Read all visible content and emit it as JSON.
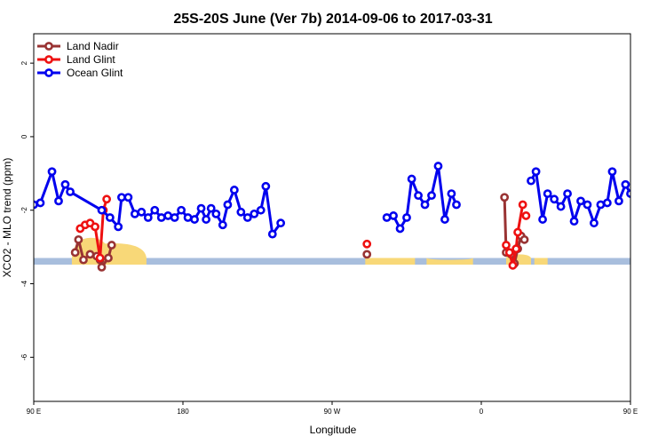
{
  "chart_data": {
    "type": "line",
    "title": "25S-20S June (Ver 7b)   2014-09-06 to 2017-03-31",
    "xlabel": "Longitude",
    "ylabel": "XCO2 - MLO trend (ppm)",
    "xlim": [
      90,
      450
    ],
    "ylim": [
      -7.2,
      2.8
    ],
    "x_ticks": [
      {
        "value": 90,
        "label": "90 E"
      },
      {
        "value": 180,
        "label": "180"
      },
      {
        "value": 270,
        "label": "90 W"
      },
      {
        "value": 360,
        "label": "0"
      },
      {
        "value": 450,
        "label": "90 E"
      },
      {
        "value": 540,
        "label": "180"
      }
    ],
    "y_ticks": [
      {
        "value": 2,
        "label": "2"
      },
      {
        "value": 0,
        "label": "0"
      },
      {
        "value": -2,
        "label": "-2"
      },
      {
        "value": -4,
        "label": "-4"
      },
      {
        "value": -6,
        "label": "-6"
      }
    ],
    "legend_position": "top-left",
    "band": {
      "y_low": -3.48,
      "y_high": -3.3,
      "color": "#a8bedd"
    },
    "land_color": "#f8d878",
    "land_regions": [
      [
        113,
        136,
        -2.75
      ],
      [
        118,
        158,
        -2.9
      ],
      [
        290,
        320,
        -3.3
      ],
      [
        327,
        355,
        -3.35
      ],
      [
        375,
        390,
        -3.2
      ],
      [
        392,
        400,
        -3.3
      ],
      [
        472,
        490,
        -2.9
      ],
      [
        482,
        518,
        -2.7
      ],
      [
        522,
        530,
        -3.3
      ]
    ],
    "series": [
      {
        "name": "Land Nadir",
        "color": "#993333",
        "segments": [
          [
            [
              115,
              -3.15
            ],
            [
              117,
              -2.8
            ],
            [
              120,
              -3.35
            ],
            [
              124,
              -3.2
            ],
            [
              128,
              -3.25
            ],
            [
              130,
              -3.35
            ],
            [
              131,
              -3.55
            ],
            [
              135,
              -3.3
            ],
            [
              137,
              -2.95
            ]
          ],
          [
            [
              291,
              -3.2
            ]
          ],
          [
            [
              374,
              -1.65
            ],
            [
              375,
              -3.15
            ],
            [
              378,
              -3.2
            ],
            [
              380,
              -3.45
            ],
            [
              382,
              -3.05
            ],
            [
              384,
              -2.7
            ]
          ],
          [
            [
              386,
              -2.8
            ]
          ],
          [
            [
              475,
              -3.15
            ],
            [
              477,
              -2.75
            ],
            [
              480,
              -3.3
            ],
            [
              483,
              -3.2
            ],
            [
              486,
              -3.3
            ],
            [
              488,
              -3.35
            ],
            [
              489,
              -3.55
            ],
            [
              492,
              -3.3
            ],
            [
              494,
              -2.95
            ]
          ]
        ]
      },
      {
        "name": "Land Glint",
        "color": "#ee1111",
        "segments": [
          [
            [
              118,
              -2.5
            ],
            [
              121,
              -2.4
            ],
            [
              124,
              -2.35
            ],
            [
              127,
              -2.45
            ],
            [
              130,
              -3.3
            ],
            [
              132,
              -2.0
            ],
            [
              134,
              -1.7
            ]
          ],
          [
            [
              291,
              -2.92
            ]
          ],
          [
            [
              375,
              -2.95
            ],
            [
              377,
              -3.15
            ],
            [
              379,
              -3.5
            ],
            [
              381,
              -3.05
            ],
            [
              382,
              -2.6
            ],
            [
              385,
              -1.85
            ]
          ],
          [
            [
              387,
              -2.15
            ]
          ],
          [
            [
              478,
              -2.5
            ],
            [
              481,
              -2.4
            ],
            [
              484,
              -2.35
            ],
            [
              487,
              -2.45
            ],
            [
              490,
              -3.3
            ],
            [
              492,
              -2.0
            ],
            [
              494,
              -1.7
            ]
          ]
        ]
      },
      {
        "name": "Ocean Glint",
        "color": "#0000ee",
        "segments": [
          [
            [
              90,
              -1.85
            ],
            [
              94,
              -1.8
            ],
            [
              101,
              -0.95
            ],
            [
              105,
              -1.75
            ],
            [
              109,
              -1.3
            ],
            [
              112,
              -1.5
            ],
            [
              131,
              -2.0
            ],
            [
              136,
              -2.2
            ],
            [
              141,
              -2.45
            ],
            [
              143,
              -1.65
            ],
            [
              147,
              -1.65
            ],
            [
              151,
              -2.1
            ],
            [
              155,
              -2.05
            ],
            [
              159,
              -2.2
            ],
            [
              163,
              -2.0
            ],
            [
              167,
              -2.2
            ],
            [
              171,
              -2.15
            ],
            [
              175,
              -2.2
            ],
            [
              179,
              -2.0
            ],
            [
              183,
              -2.2
            ],
            [
              187,
              -2.25
            ],
            [
              191,
              -1.95
            ],
            [
              194,
              -2.25
            ],
            [
              197,
              -1.95
            ],
            [
              200,
              -2.1
            ],
            [
              204,
              -2.4
            ],
            [
              207,
              -1.85
            ],
            [
              211,
              -1.45
            ],
            [
              215,
              -2.05
            ],
            [
              219,
              -2.2
            ],
            [
              223,
              -2.1
            ],
            [
              227,
              -2.0
            ],
            [
              230,
              -1.35
            ],
            [
              234,
              -2.65
            ],
            [
              239,
              -2.35
            ]
          ],
          [
            [
              303,
              -2.2
            ],
            [
              307,
              -2.15
            ],
            [
              311,
              -2.5
            ],
            [
              315,
              -2.2
            ],
            [
              318,
              -1.15
            ],
            [
              322,
              -1.6
            ],
            [
              326,
              -1.85
            ],
            [
              330,
              -1.6
            ],
            [
              334,
              -0.8
            ],
            [
              338,
              -2.25
            ],
            [
              342,
              -1.55
            ],
            [
              345,
              -1.85
            ]
          ],
          [
            [
              390,
              -1.2
            ],
            [
              393,
              -0.95
            ],
            [
              397,
              -2.25
            ],
            [
              400,
              -1.55
            ],
            [
              404,
              -1.7
            ],
            [
              408,
              -1.9
            ],
            [
              412,
              -1.55
            ],
            [
              416,
              -2.3
            ],
            [
              420,
              -1.75
            ],
            [
              424,
              -1.85
            ],
            [
              428,
              -2.35
            ],
            [
              432,
              -1.85
            ],
            [
              436,
              -1.8
            ],
            [
              439,
              -0.95
            ],
            [
              443,
              -1.75
            ],
            [
              447,
              -1.3
            ],
            [
              450,
              -1.55
            ]
          ]
        ]
      }
    ]
  }
}
